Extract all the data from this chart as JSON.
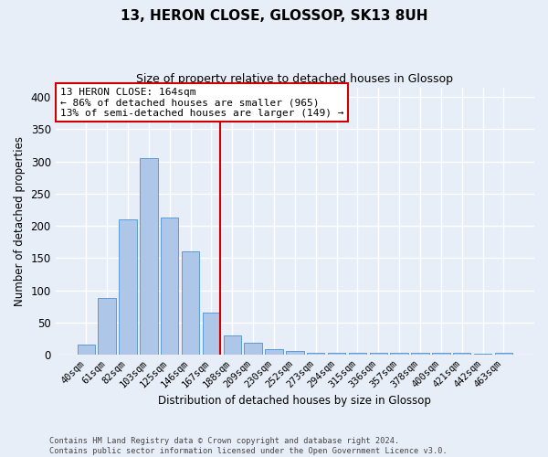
{
  "title": "13, HERON CLOSE, GLOSSOP, SK13 8UH",
  "subtitle": "Size of property relative to detached houses in Glossop",
  "xlabel": "Distribution of detached houses by size in Glossop",
  "ylabel": "Number of detached properties",
  "categories": [
    "40sqm",
    "61sqm",
    "82sqm",
    "103sqm",
    "125sqm",
    "146sqm",
    "167sqm",
    "188sqm",
    "209sqm",
    "230sqm",
    "252sqm",
    "273sqm",
    "294sqm",
    "315sqm",
    "336sqm",
    "357sqm",
    "378sqm",
    "400sqm",
    "421sqm",
    "442sqm",
    "463sqm"
  ],
  "values": [
    15,
    88,
    210,
    305,
    213,
    160,
    65,
    30,
    18,
    9,
    5,
    3,
    3,
    3,
    3,
    3,
    3,
    3,
    3,
    1,
    3
  ],
  "bar_color": "#aec6e8",
  "bar_edge_color": "#5b9bd5",
  "vline_color": "#cc0000",
  "annotation_title": "13 HERON CLOSE: 164sqm",
  "annotation_line1": "← 86% of detached houses are smaller (965)",
  "annotation_line2": "13% of semi-detached houses are larger (149) →",
  "annotation_box_color": "#ffffff",
  "annotation_box_edge": "#cc0000",
  "bg_color": "#e8eef8",
  "grid_color": "#ffffff",
  "ylim": [
    0,
    415
  ],
  "yticks": [
    0,
    50,
    100,
    150,
    200,
    250,
    300,
    350,
    400
  ],
  "footnote1": "Contains HM Land Registry data © Crown copyright and database right 2024.",
  "footnote2": "Contains public sector information licensed under the Open Government Licence v3.0."
}
